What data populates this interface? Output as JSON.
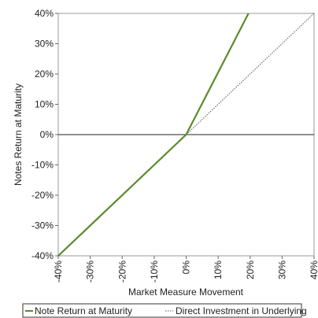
{
  "chart_data": {
    "type": "line",
    "xlabel": "Market Measure Movement",
    "ylabel": "Notes Return at Maturity",
    "xlim": [
      -40,
      40
    ],
    "ylim": [
      -40,
      40
    ],
    "x_ticks": [
      "-40%",
      "-30%",
      "-20%",
      "-10%",
      "0%",
      "10%",
      "20%",
      "30%",
      "40%"
    ],
    "y_ticks": [
      "40%",
      "30%",
      "20%",
      "10%",
      "0%",
      "-10%",
      "-20%",
      "-30%",
      "-40%"
    ],
    "x_tick_values": [
      -40,
      -30,
      -20,
      -10,
      0,
      10,
      20,
      30,
      40
    ],
    "y_tick_values": [
      40,
      30,
      20,
      10,
      0,
      -10,
      -20,
      -30,
      -40
    ],
    "grid": false,
    "legend_position": "bottom",
    "series": [
      {
        "name": "Note Return at Maturity",
        "color": "#5a8a2a",
        "style": "solid",
        "x": [
          -40,
          0,
          19.5
        ],
        "y": [
          -40,
          0,
          40
        ]
      },
      {
        "name": "Direct Investment in Underlying",
        "color": "#555555",
        "style": "dotted",
        "x": [
          0,
          40
        ],
        "y": [
          0,
          40
        ]
      }
    ]
  }
}
